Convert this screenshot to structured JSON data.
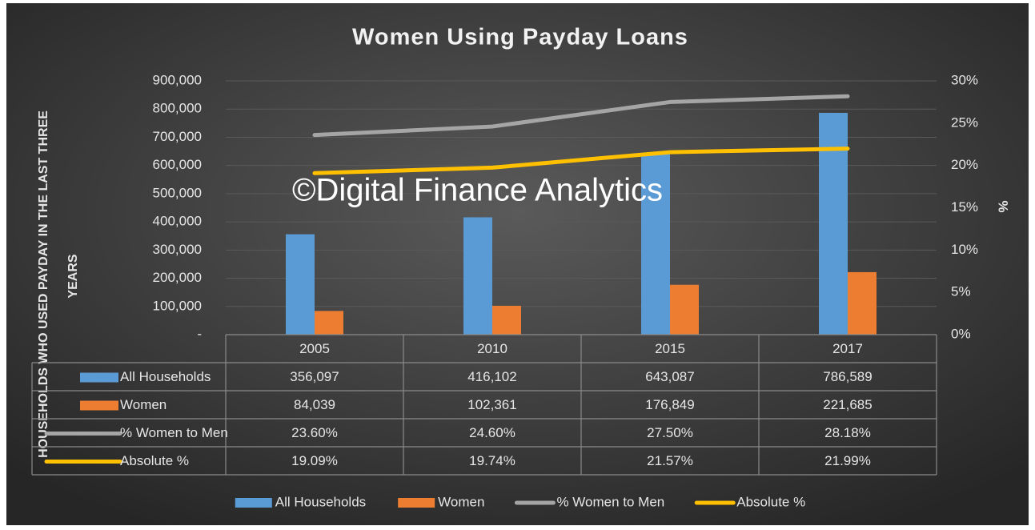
{
  "chart_data": {
    "type": "bar",
    "title": "Women Using Payday Loans",
    "watermark": "©Digital Finance Analytics",
    "y_label": [
      "HOUSEHOLDS WHO USED PAYDAY IN THE LAST THREE",
      "YEARS"
    ],
    "y2_label": "%",
    "categories": [
      "2005",
      "2010",
      "2015",
      "2017"
    ],
    "series": [
      {
        "name": "All Households",
        "type": "bar",
        "color": "#5b9bd5",
        "values": [
          356097,
          416102,
          643087,
          786589
        ],
        "value_labels": [
          "356,097",
          "416,102",
          "643,087",
          "786,589"
        ]
      },
      {
        "name": "Women",
        "type": "bar",
        "color": "#ed7d31",
        "values": [
          84039,
          102361,
          176849,
          221685
        ],
        "value_labels": [
          "84,039",
          "102,361",
          "176,849",
          "221,685"
        ]
      },
      {
        "name": "% Women to Men",
        "type": "line",
        "axis": "y2",
        "color": "#a5a5a5",
        "values": [
          23.6,
          24.6,
          27.5,
          28.18
        ],
        "value_labels": [
          "23.60%",
          "24.60%",
          "27.50%",
          "28.18%"
        ]
      },
      {
        "name": "Absolute %",
        "type": "line",
        "axis": "y2",
        "color": "#ffc000",
        "values": [
          19.09,
          19.74,
          21.57,
          21.99
        ],
        "value_labels": [
          "19.09%",
          "19.74%",
          "21.57%",
          "21.99%"
        ]
      }
    ],
    "ylim": [
      0,
      900000
    ],
    "yticks": [
      {
        "value": 0,
        "label": "-"
      },
      {
        "value": 100000,
        "label": "100,000"
      },
      {
        "value": 200000,
        "label": "200,000"
      },
      {
        "value": 300000,
        "label": "300,000"
      },
      {
        "value": 400000,
        "label": "400,000"
      },
      {
        "value": 500000,
        "label": "500,000"
      },
      {
        "value": 600000,
        "label": "600,000"
      },
      {
        "value": 700000,
        "label": "700,000"
      },
      {
        "value": 800000,
        "label": "800,000"
      },
      {
        "value": 900000,
        "label": "900,000"
      }
    ],
    "y2lim": [
      0,
      30
    ],
    "y2ticks": [
      {
        "value": 0,
        "label": "0%"
      },
      {
        "value": 5,
        "label": "5%"
      },
      {
        "value": 10,
        "label": "10%"
      },
      {
        "value": 15,
        "label": "15%"
      },
      {
        "value": 20,
        "label": "20%"
      },
      {
        "value": 25,
        "label": "25%"
      },
      {
        "value": 30,
        "label": "30%"
      }
    ],
    "grid": true,
    "legend": "bottom"
  }
}
